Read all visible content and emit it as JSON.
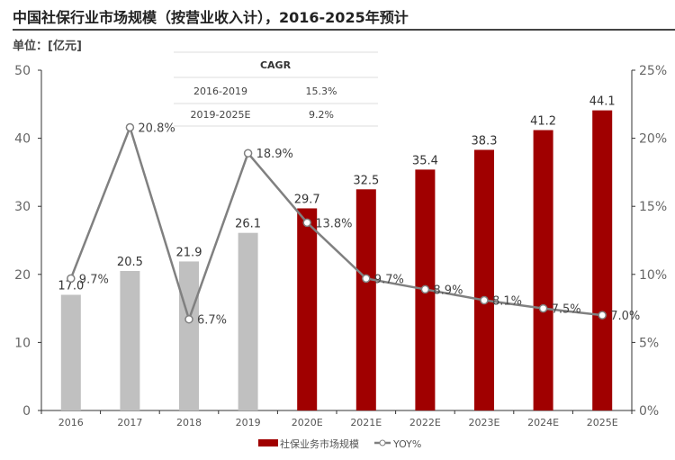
{
  "title": "中国社保行业市场规模（按营业收入计），2016-2025年预计",
  "unit": "单位：[亿元]",
  "cagr_table": {
    "header": "CAGR",
    "rows": [
      {
        "period": "2016-2019",
        "value": "15.3%"
      },
      {
        "period": "2019-2025E",
        "value": "9.2%"
      }
    ]
  },
  "chart_data": {
    "type": "bar+line",
    "categories": [
      "2016",
      "2017",
      "2018",
      "2019",
      "2020E",
      "2021E",
      "2022E",
      "2023E",
      "2024E",
      "2025E"
    ],
    "series": [
      {
        "name": "社保业务市场规模",
        "type": "bar",
        "axis": "left",
        "values": [
          17.0,
          20.5,
          21.9,
          26.1,
          29.7,
          32.5,
          35.4,
          38.3,
          41.2,
          44.1
        ],
        "labels": [
          "17.0",
          "20.5",
          "21.9",
          "26.1",
          "29.7",
          "32.5",
          "35.4",
          "38.3",
          "41.2",
          "44.1"
        ],
        "colors": [
          "#c0c0c0",
          "#c0c0c0",
          "#c0c0c0",
          "#c0c0c0",
          "#a00000",
          "#a00000",
          "#a00000",
          "#a00000",
          "#a00000",
          "#a00000"
        ]
      },
      {
        "name": "YOY%",
        "type": "line",
        "axis": "right",
        "values": [
          9.7,
          20.8,
          6.7,
          18.9,
          13.8,
          9.7,
          8.9,
          8.1,
          7.5,
          7.0
        ],
        "labels": [
          "9.7%",
          "20.8%",
          "6.7%",
          "18.9%",
          "13.8%",
          "9.7%",
          "8.9%",
          "8.1%",
          "7.5%",
          "7.0%"
        ],
        "color": "#808080"
      }
    ],
    "left_axis": {
      "ylim": [
        0,
        50
      ],
      "ticks": [
        "0",
        "10",
        "20",
        "30",
        "40",
        "50"
      ]
    },
    "right_axis": {
      "ylim": [
        0,
        25
      ],
      "ticks": [
        "0%",
        "5%",
        "10%",
        "15%",
        "20%",
        "25%"
      ]
    },
    "legend": {
      "placement": "bottom",
      "items": [
        "社保业务市场规模",
        "YOY%"
      ]
    },
    "grid": false
  }
}
